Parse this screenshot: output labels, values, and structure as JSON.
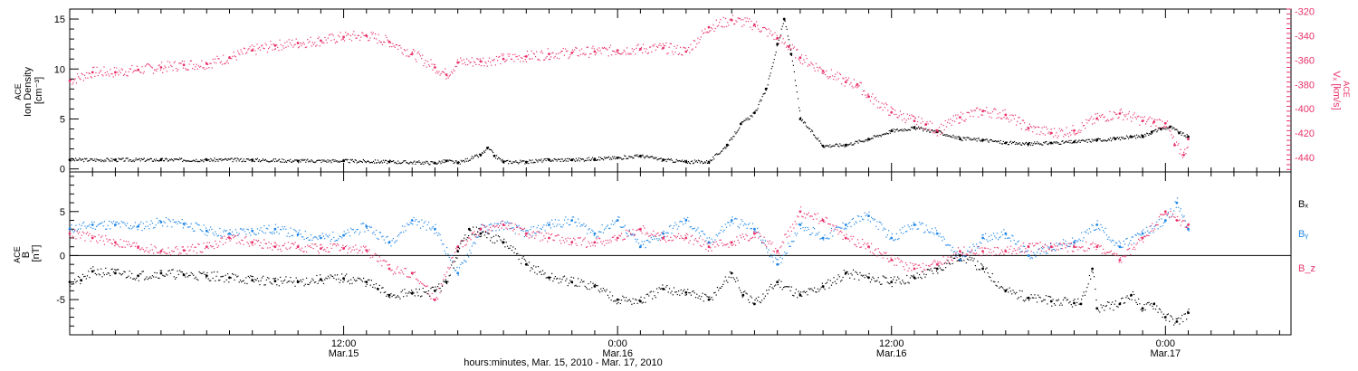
{
  "colors": {
    "black": "#000000",
    "red": "#e8336a",
    "blue": "#1f86e6"
  },
  "xaxis": {
    "title": "hours:minutes, Mar. 15, 2010 - Mar. 17, 2010",
    "tick_labels": [
      {
        "hour": 12,
        "time": "12:00",
        "date": "Mar.15"
      },
      {
        "hour": 24,
        "time": "0:00",
        "date": "Mar.16"
      },
      {
        "hour": 36,
        "time": "12:00",
        "date": "Mar.16"
      },
      {
        "hour": 48,
        "time": "0:00",
        "date": "Mar.17"
      }
    ]
  },
  "chart_data": [
    {
      "type": "scatter",
      "panel": "top",
      "left_axis": {
        "label": [
          "ACE",
          "Ion Density",
          "[cm⁻³]"
        ],
        "ylim": [
          -0.3,
          16.0
        ],
        "ticks": [
          0,
          5,
          10,
          15
        ]
      },
      "right_axis": {
        "label": [
          "ACE",
          "Vₓ [km/s]"
        ],
        "ylim": [
          -452,
          -318
        ],
        "ticks": [
          -320,
          -340,
          -360,
          -380,
          -400,
          -420,
          -440
        ]
      },
      "xlim_hours": [
        0,
        53.5
      ],
      "density": {
        "axis": "left",
        "color": "black",
        "x": [
          0,
          2,
          4,
          6,
          8,
          10,
          12,
          14,
          16,
          16.5,
          17,
          18,
          18.3,
          18.6,
          19,
          20,
          21,
          22,
          23,
          24,
          25,
          26,
          27,
          28,
          28.8,
          29.4,
          30,
          30.5,
          31.0,
          31.3,
          31.6,
          32,
          33,
          34,
          35,
          36,
          37,
          38,
          39,
          40,
          41,
          42,
          43,
          44,
          45,
          45.8,
          46.5,
          47,
          47.4,
          47.8,
          48.2,
          48.6,
          49.0
        ],
        "y": [
          0.9,
          0.9,
          0.9,
          0.9,
          0.9,
          0.8,
          0.8,
          0.7,
          0.6,
          0.8,
          0.6,
          1.4,
          2.1,
          1.3,
          0.7,
          0.7,
          0.9,
          0.9,
          1.0,
          1.1,
          1.3,
          0.9,
          0.7,
          0.7,
          2.4,
          4.5,
          5.6,
          8.0,
          12.5,
          15.0,
          11.5,
          5.0,
          2.3,
          2.4,
          3.0,
          3.8,
          4.1,
          3.7,
          3.0,
          2.9,
          2.6,
          2.5,
          2.6,
          2.7,
          2.9,
          3.0,
          3.2,
          3.3,
          3.7,
          4.0,
          4.2,
          3.6,
          3.2
        ]
      },
      "vx": {
        "axis": "right",
        "color": "red",
        "x": [
          0,
          1,
          2,
          3,
          4,
          5,
          6,
          7,
          8,
          9,
          10,
          11,
          12,
          13,
          14,
          15,
          16,
          16.5,
          17,
          18,
          19,
          20,
          21,
          22,
          23,
          24,
          25,
          26,
          27,
          28,
          29,
          30,
          31,
          31.5,
          32,
          33,
          34,
          34.5,
          35,
          36,
          37,
          37.5,
          38,
          39,
          40,
          41,
          42,
          43,
          44,
          45,
          46,
          47,
          47.5,
          48,
          48.4,
          48.8,
          49.0
        ],
        "y": [
          -377,
          -370,
          -370,
          -368,
          -366,
          -364,
          -363,
          -358,
          -352,
          -348,
          -346,
          -344,
          -341,
          -340,
          -345,
          -355,
          -366,
          -372,
          -362,
          -361,
          -359,
          -357,
          -355,
          -354,
          -353,
          -352,
          -351,
          -350,
          -353,
          -333,
          -327,
          -331,
          -342,
          -349,
          -358,
          -369,
          -378,
          -380,
          -390,
          -403,
          -410,
          -413,
          -418,
          -407,
          -402,
          -405,
          -416,
          -420,
          -418,
          -408,
          -404,
          -410,
          -411,
          -412,
          -430,
          -438,
          -425
        ]
      }
    },
    {
      "type": "scatter",
      "panel": "bottom",
      "left_axis": {
        "label": [
          "ACE",
          "B",
          "[nT]"
        ],
        "ylim": [
          -9.0,
          9.5
        ],
        "ticks": [
          -5,
          0,
          5
        ]
      },
      "xlim_hours": [
        0,
        53.5
      ],
      "zero_line": true,
      "legend": "right",
      "series": [
        {
          "name": "Bₓ",
          "color": "black",
          "x": [
            0,
            0.5,
            1,
            2,
            3,
            4,
            5,
            6,
            7,
            8,
            9,
            10,
            11,
            12,
            13,
            13.5,
            14,
            15,
            16,
            16.5,
            17,
            17.5,
            18,
            19,
            20,
            21,
            22,
            23,
            24,
            25,
            26,
            27,
            28,
            29,
            29.5,
            30,
            31,
            32,
            33,
            34,
            35,
            36,
            37,
            38,
            39,
            40,
            41,
            42,
            43,
            44,
            44.3,
            44.8,
            45,
            46,
            46.5,
            47,
            47.5,
            48,
            48.5,
            49.0
          ],
          "y": [
            -3.0,
            -2.8,
            -1.8,
            -2.0,
            -2.3,
            -2.0,
            -2.2,
            -2.3,
            -2.5,
            -2.8,
            -2.9,
            -3.0,
            -2.7,
            -2.6,
            -3.0,
            -3.8,
            -4.5,
            -4.3,
            -4.0,
            -3.0,
            0.5,
            3.0,
            2.5,
            1.5,
            -1.0,
            -2.5,
            -3.0,
            -3.5,
            -5.0,
            -5.2,
            -3.8,
            -4.2,
            -5.0,
            -2.0,
            -4.5,
            -5.5,
            -3.0,
            -4.5,
            -3.5,
            -2.0,
            -2.5,
            -3.0,
            -2.5,
            -1.5,
            0.0,
            -1.5,
            -4.0,
            -4.8,
            -5.2,
            -5.4,
            -5.5,
            -1.5,
            -6.0,
            -5.5,
            -4.5,
            -6.0,
            -5.5,
            -7.0,
            -7.5,
            -6.5
          ]
        },
        {
          "name": "Bᵧ",
          "color": "blue",
          "x": [
            0,
            1,
            2,
            3,
            4,
            5,
            6,
            7,
            8,
            9,
            10,
            11,
            12,
            13,
            14,
            15,
            16,
            17,
            18,
            19,
            20,
            21,
            22,
            23,
            24,
            25,
            26,
            27,
            28,
            29,
            30,
            31,
            32,
            33,
            34,
            35,
            36,
            37,
            38,
            39,
            40,
            41,
            42,
            43,
            44,
            45,
            46,
            47,
            48,
            48.5,
            49.0
          ],
          "y": [
            3.0,
            3.5,
            3.5,
            3.3,
            3.8,
            3.6,
            2.8,
            2.5,
            2.8,
            3.0,
            2.4,
            2.0,
            2.3,
            3.3,
            1.5,
            4.0,
            3.0,
            -2.0,
            3.0,
            3.5,
            2.5,
            3.5,
            4.0,
            2.5,
            4.0,
            1.0,
            2.5,
            4.0,
            1.5,
            4.0,
            3.0,
            -1.0,
            3.5,
            2.0,
            3.5,
            4.5,
            2.0,
            3.5,
            2.5,
            -0.5,
            2.0,
            2.5,
            0.0,
            1.0,
            1.5,
            3.5,
            1.0,
            2.5,
            4.0,
            6.0,
            3.0
          ]
        },
        {
          "name": "B_z",
          "color": "red",
          "x": [
            0,
            1,
            2,
            3,
            4,
            5,
            6,
            7,
            8,
            9,
            10,
            11,
            12,
            13,
            14,
            15,
            16,
            17,
            18,
            19,
            20,
            21,
            22,
            23,
            24,
            25,
            26,
            27,
            28,
            29,
            30,
            31,
            32,
            33,
            34,
            35,
            36,
            37,
            38,
            39,
            40,
            41,
            42,
            43,
            44,
            45,
            46,
            47,
            48,
            48.5,
            49.0
          ],
          "y": [
            2.5,
            2.0,
            1.5,
            1.0,
            0.5,
            0.6,
            1.0,
            2.0,
            1.5,
            1.0,
            1.0,
            0.8,
            0.8,
            0.6,
            -1.5,
            -2.0,
            -5.0,
            1.0,
            3.0,
            3.5,
            2.5,
            2.0,
            1.5,
            1.5,
            2.0,
            3.0,
            2.0,
            2.0,
            1.0,
            1.5,
            2.5,
            0.5,
            5.0,
            4.0,
            2.0,
            1.0,
            -0.5,
            -1.5,
            -1.0,
            0.5,
            0.5,
            0.5,
            1.0,
            1.0,
            1.0,
            1.0,
            -0.5,
            2.0,
            5.0,
            4.0,
            3.5
          ]
        }
      ]
    }
  ]
}
